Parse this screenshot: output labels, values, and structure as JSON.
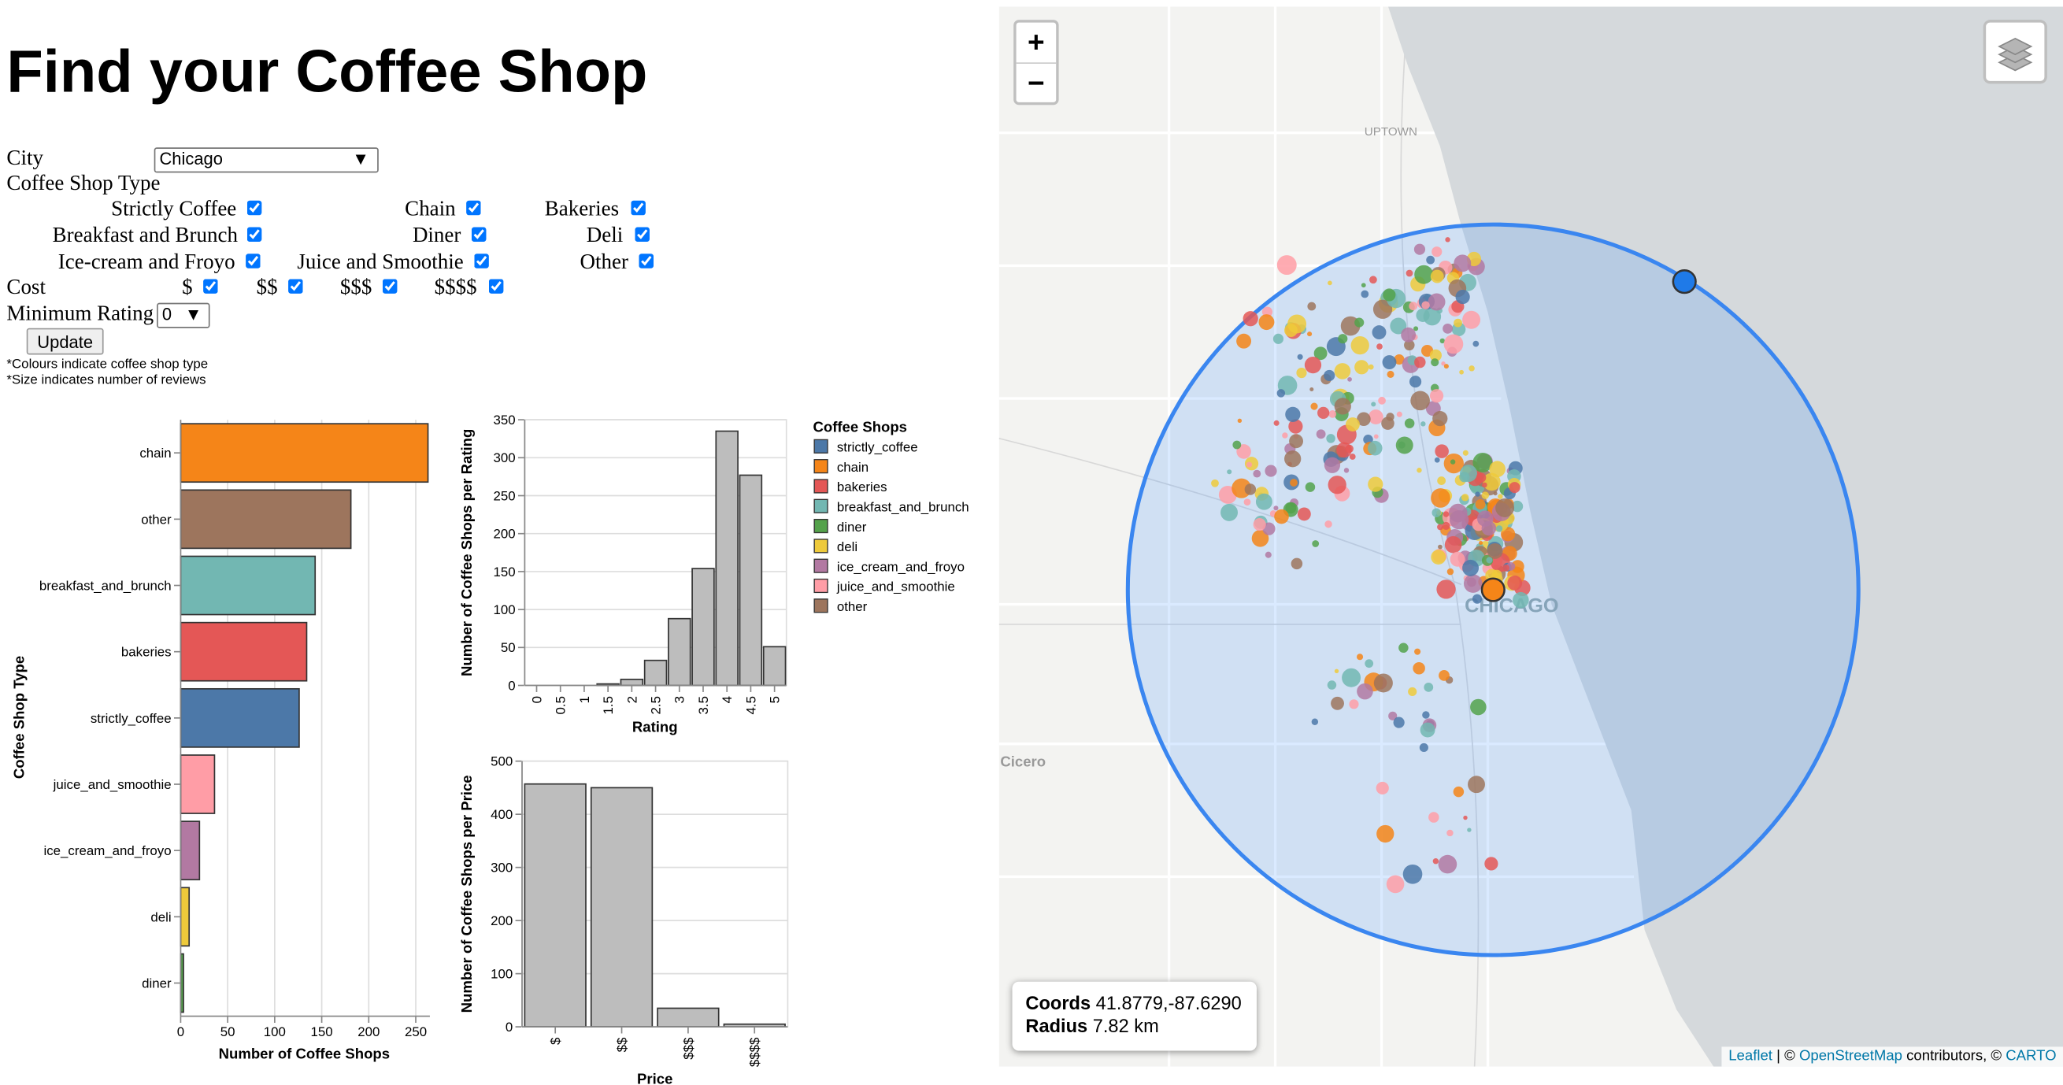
{
  "header": {
    "title": "Find your Coffee Shop"
  },
  "form": {
    "city_label": "City",
    "city": "Chicago",
    "type_label": "Coffee Shop Type",
    "types": [
      {
        "label": "Strictly Coffee",
        "checked": true
      },
      {
        "label": "Chain",
        "checked": true
      },
      {
        "label": "Bakeries",
        "checked": true
      },
      {
        "label": "Breakfast and Brunch",
        "checked": true
      },
      {
        "label": "Diner",
        "checked": true
      },
      {
        "label": "Deli",
        "checked": true
      },
      {
        "label": "Ice-cream and Froyo",
        "checked": true
      },
      {
        "label": "Juice and Smoothie",
        "checked": true
      },
      {
        "label": "Other",
        "checked": true
      }
    ],
    "cost_label": "Cost",
    "costs": [
      {
        "label": "$",
        "checked": true
      },
      {
        "label": "$$",
        "checked": true
      },
      {
        "label": "$$$",
        "checked": true
      },
      {
        "label": "$$$$",
        "checked": true
      }
    ],
    "rating_label": "Minimum Rating",
    "min_rating": "0",
    "button": "Update",
    "notes": [
      "*Colours indicate coffee shop type",
      "*Size indicates number of reviews"
    ]
  },
  "chart_data": [
    {
      "type": "bar",
      "orientation": "horizontal",
      "categories": [
        "chain",
        "other",
        "breakfast_and_brunch",
        "bakeries",
        "strictly_coffee",
        "juice_and_smoothie",
        "ice_cream_and_froyo",
        "deli",
        "diner"
      ],
      "values": [
        263,
        181,
        143,
        134,
        126,
        36,
        20,
        9,
        3
      ],
      "colors": [
        "#f58518",
        "#9d755d",
        "#72b7b2",
        "#e45756",
        "#4c78a8",
        "#ff9da6",
        "#b279a2",
        "#eeca3b",
        "#54a24b"
      ],
      "edgecolor": "#333333",
      "xlim": [
        0,
        265
      ],
      "xticks": [
        0,
        50,
        100,
        150,
        200,
        250
      ],
      "xlabel": "Number of Coffee Shops",
      "ylabel": "Coffee Shop Type",
      "grid": true
    },
    {
      "type": "bar",
      "orientation": "vertical",
      "categories": [
        "0",
        "0.5",
        "1",
        "1.5",
        "2",
        "2.5",
        "3",
        "3.5",
        "4",
        "4.5",
        "5"
      ],
      "values": [
        0,
        0,
        0,
        2,
        8,
        33,
        88,
        154,
        335,
        277,
        51
      ],
      "color": "#bdbdbd",
      "edgecolor": "#333333",
      "ylim": [
        0,
        350
      ],
      "yticks": [
        0,
        50,
        100,
        150,
        200,
        250,
        300,
        350
      ],
      "xlabel": "Rating",
      "ylabel": "Number of Coffee Shops per Rating",
      "grid": true
    },
    {
      "type": "bar",
      "orientation": "vertical",
      "categories": [
        "$",
        "$$",
        "$$$",
        "$$$$"
      ],
      "values": [
        457,
        450,
        35,
        5
      ],
      "color": "#bdbdbd",
      "edgecolor": "#333333",
      "ylim": [
        0,
        500
      ],
      "yticks": [
        0,
        100,
        200,
        300,
        400,
        500
      ],
      "xlabel": "Price",
      "ylabel": "Number of Coffee Shops per Price",
      "grid": true
    }
  ],
  "legend": {
    "title": "Coffee Shops",
    "items": [
      {
        "name": "strictly_coffee",
        "color": "#4c78a8"
      },
      {
        "name": "chain",
        "color": "#f58518"
      },
      {
        "name": "bakeries",
        "color": "#e45756"
      },
      {
        "name": "breakfast_and_brunch",
        "color": "#72b7b2"
      },
      {
        "name": "diner",
        "color": "#54a24b"
      },
      {
        "name": "deli",
        "color": "#eeca3b"
      },
      {
        "name": "ice_cream_and_froyo",
        "color": "#b279a2"
      },
      {
        "name": "juice_and_smoothie",
        "color": "#ff9da6"
      },
      {
        "name": "other",
        "color": "#9d755d"
      }
    ]
  },
  "map": {
    "zoom_in": "+",
    "zoom_out": "−",
    "places": [
      "UPTOWN",
      "CHICAGO",
      "Cicero"
    ],
    "coords_label": "Coords",
    "coords": "41.8779,-87.6290",
    "radius_label": "Radius",
    "radius": "7.82 km",
    "attribution": [
      "Leaflet",
      "| ©",
      "OpenStreetMap",
      "contributors, ©",
      "CARTO"
    ]
  }
}
